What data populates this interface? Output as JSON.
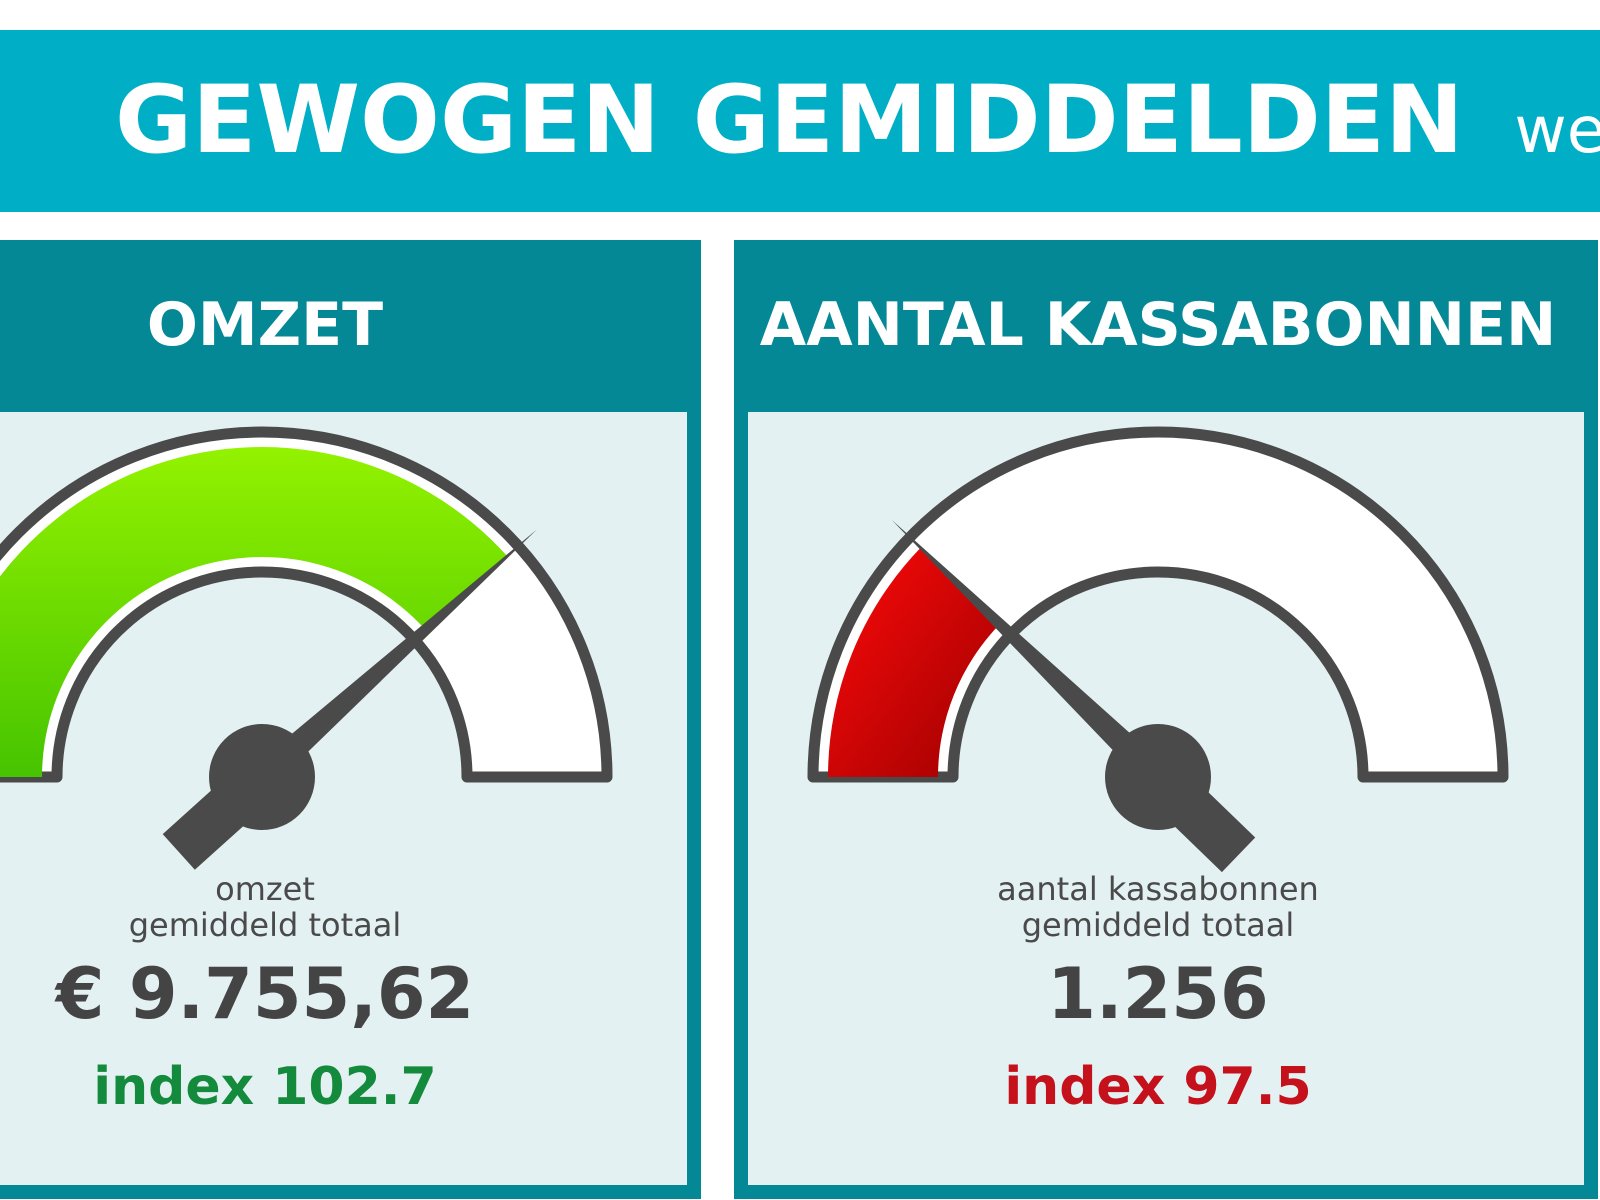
{
  "header": {
    "title": "GEWOGEN GEMIDDELDEN",
    "subtitle": "wee"
  },
  "panels": [
    {
      "title": "OMZET",
      "caption_lines": [
        "omzet",
        "gemiddeld totaal"
      ],
      "value": "€ 9.755,62",
      "index": "index 102.7"
    },
    {
      "title": "AANTAL KASSABONNEN",
      "caption_lines": [
        "aantal kassabonnen",
        "gemiddeld totaal"
      ],
      "value": "1.256",
      "index": "index 97.5"
    }
  ]
}
